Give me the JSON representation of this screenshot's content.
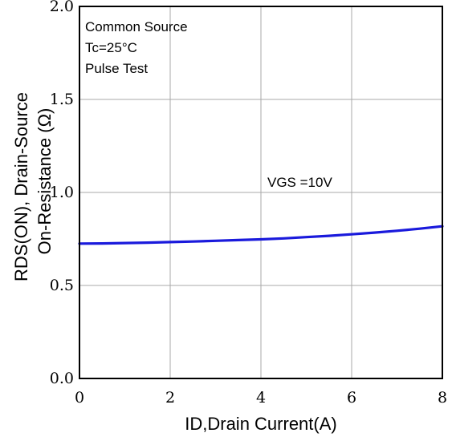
{
  "chart_data": {
    "type": "line",
    "title": "",
    "xlabel": "ID,Drain Current(A)",
    "ylabel_lines": [
      "RDS(ON), Drain-Source",
      "On-Resistance (Ω)"
    ],
    "xlim": [
      0,
      8
    ],
    "ylim": [
      0.0,
      2.0
    ],
    "x_ticks": [
      0,
      2,
      4,
      6,
      8
    ],
    "x_tick_labels": [
      "0",
      "2",
      "4",
      "6",
      "8"
    ],
    "y_ticks": [
      0.0,
      0.5,
      1.0,
      1.5,
      2.0
    ],
    "y_tick_labels": [
      "0.0",
      "0.5",
      "1.0",
      "1.5",
      "2.0"
    ],
    "grid": true,
    "annotations": {
      "conditions": [
        "Common Source",
        "Tc=25°C",
        "Pulse Test"
      ],
      "curve_label": "VGS =10V"
    },
    "series": [
      {
        "name": "",
        "color": "#1a1adc",
        "x": [
          0,
          0.5,
          1,
          1.5,
          2,
          2.5,
          3,
          3.5,
          4,
          4.5,
          5,
          5.5,
          6,
          6.5,
          7,
          7.5,
          8
        ],
        "y": [
          0.725,
          0.726,
          0.728,
          0.73,
          0.733,
          0.736,
          0.74,
          0.744,
          0.748,
          0.753,
          0.76,
          0.767,
          0.775,
          0.784,
          0.794,
          0.805,
          0.818
        ]
      }
    ]
  }
}
